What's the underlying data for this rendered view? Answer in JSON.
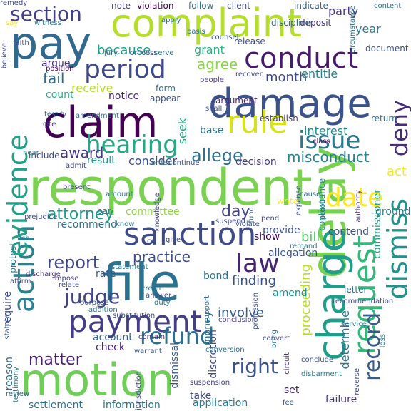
{
  "palette": {
    "background": "#ffffff",
    "purple": "#46337e",
    "dark_blue": "#365c8d",
    "blue": "#277f8e",
    "teal": "#1fa187",
    "green": "#4ac16d",
    "light_green": "#9fda3a",
    "yellow": "#fde725"
  },
  "words": [
    {
      "text": "respondent",
      "color": "#7ad151"
    },
    {
      "text": "delay",
      "color": "#7ad151"
    },
    {
      "text": "motion",
      "color": "#6ece58"
    },
    {
      "text": "file",
      "color": "#2c728e"
    },
    {
      "text": "complaint",
      "color": "#b5de2b"
    },
    {
      "text": "damage",
      "color": "#3b528b"
    },
    {
      "text": "claim",
      "color": "#440154"
    },
    {
      "text": "pay",
      "color": "#31688e"
    },
    {
      "text": "charge",
      "color": "#1f9e89"
    },
    {
      "text": "request",
      "color": "#35b779"
    },
    {
      "text": "sanction",
      "color": "#3e4a89"
    },
    {
      "text": "payment",
      "color": "#433e85"
    },
    {
      "text": "action",
      "color": "#26828e"
    },
    {
      "text": "conduct",
      "color": "#481a6c"
    },
    {
      "text": "rule",
      "color": "#d8e219"
    },
    {
      "text": "dismiss",
      "color": "#21918c"
    },
    {
      "text": "evidence",
      "color": "#1fa187"
    },
    {
      "text": "issue",
      "color": "#2a788e"
    },
    {
      "text": "period",
      "color": "#3e4989"
    },
    {
      "text": "hearing",
      "color": "#22a884"
    },
    {
      "text": "date",
      "color": "#fde725"
    },
    {
      "text": "law",
      "color": "#482475"
    },
    {
      "text": "refund",
      "color": "#2d708e"
    },
    {
      "text": "right",
      "color": "#3b528b"
    },
    {
      "text": "deny",
      "color": "#472c7a"
    },
    {
      "text": "judge",
      "color": "#414487"
    },
    {
      "text": "record",
      "color": "#365c8d"
    },
    {
      "text": "section",
      "color": "#424086"
    },
    {
      "text": "allege",
      "color": "#2e6e8e"
    },
    {
      "text": "report",
      "color": "#3f4788"
    },
    {
      "text": "matter",
      "color": "#482173"
    },
    {
      "text": "attorney",
      "color": "#1f988b"
    },
    {
      "text": "day",
      "color": "#404688"
    },
    {
      "text": "misconduct",
      "color": "#25848e"
    },
    {
      "text": "award",
      "color": "#453882"
    },
    {
      "text": "fail",
      "color": "#31688e"
    },
    {
      "text": "month",
      "color": "#3e4989"
    },
    {
      "text": "because",
      "color": "#1e9b8a"
    },
    {
      "text": "proceeding",
      "color": "#b8de29"
    },
    {
      "text": "bill",
      "color": "#56c667"
    },
    {
      "text": "practice",
      "color": "#3e4c8a"
    },
    {
      "text": "finding",
      "color": "#3b528b"
    },
    {
      "text": "involve",
      "color": "#365d8d"
    },
    {
      "text": "determine",
      "color": "#2c718e"
    },
    {
      "text": "agree",
      "color": "#8bd646"
    },
    {
      "text": "party",
      "color": "#443a83"
    },
    {
      "text": "year",
      "color": "#287d8e"
    },
    {
      "text": "grant",
      "color": "#2db27d"
    },
    {
      "text": "argue",
      "color": "#46327e"
    },
    {
      "text": "entitle",
      "color": "#26828e"
    },
    {
      "text": "consider",
      "color": "#3c4f8a"
    },
    {
      "text": "interest",
      "color": "#24878e"
    },
    {
      "text": "base",
      "color": "#2a788e"
    },
    {
      "text": "decision",
      "color": "#433d84"
    },
    {
      "text": "result",
      "color": "#1f9a8a"
    },
    {
      "text": "seek",
      "color": "#22a884"
    },
    {
      "text": "receive",
      "color": "#b5de2b"
    },
    {
      "text": "count",
      "color": "#26ad81"
    },
    {
      "text": "notice",
      "color": "#482878"
    },
    {
      "text": "committee",
      "color": "#90d743"
    },
    {
      "text": "money",
      "color": "#2d708e"
    },
    {
      "text": "provide",
      "color": "#3b528b"
    },
    {
      "text": "rate",
      "color": "#39568c"
    },
    {
      "text": "check",
      "color": "#482475"
    },
    {
      "text": "amend",
      "color": "#21918c"
    },
    {
      "text": "reason",
      "color": "#31688e"
    },
    {
      "text": "require",
      "color": "#3e4a89"
    },
    {
      "text": "protest",
      "color": "#277f8e"
    },
    {
      "text": "show",
      "color": "#440154"
    },
    {
      "text": "account",
      "color": "#33638d"
    },
    {
      "text": "set",
      "color": "#482878"
    },
    {
      "text": "take",
      "color": "#3e4989"
    },
    {
      "text": "application",
      "color": "#2a788e"
    },
    {
      "text": "information",
      "color": "#2a788e"
    },
    {
      "text": "settlement",
      "color": "#2e6e8e"
    },
    {
      "text": "failure",
      "color": "#46327e"
    },
    {
      "text": "commissioner",
      "color": "#1fa187"
    },
    {
      "text": "recommend",
      "color": "#2d708e"
    },
    {
      "text": "contend",
      "color": "#3b528b"
    },
    {
      "text": "bond",
      "color": "#2c728e"
    },
    {
      "text": "discretion",
      "color": "#3e4989"
    },
    {
      "text": "dismissal",
      "color": "#39568c"
    },
    {
      "text": "allegation",
      "color": "#3b528b"
    },
    {
      "text": "act",
      "color": "#fde725"
    },
    {
      "text": "ground",
      "color": "#2a788e"
    },
    {
      "text": "continuance",
      "color": "#21918c"
    },
    {
      "text": "par",
      "color": "#2c728e"
    },
    {
      "text": "include",
      "color": "#3e4989"
    },
    {
      "text": "appear",
      "color": "#3b528b"
    },
    {
      "text": "form",
      "color": "#2e6e8e"
    },
    {
      "text": "establish",
      "color": "#433e85"
    },
    {
      "text": "argument",
      "color": "#482475"
    },
    {
      "text": "note",
      "color": "#414487"
    },
    {
      "text": "violation",
      "color": "#440154"
    },
    {
      "text": "follow",
      "color": "#2a788e"
    },
    {
      "text": "client",
      "color": "#3e4a89"
    },
    {
      "text": "indicate",
      "color": "#33638d"
    },
    {
      "text": "deposit",
      "color": "#46327e"
    },
    {
      "text": "discipline",
      "color": "#2e6e8e"
    },
    {
      "text": "release",
      "color": "#3e4989"
    },
    {
      "text": "circumstance",
      "color": "#2c728e"
    },
    {
      "text": "counsel",
      "color": "#3b528b"
    },
    {
      "text": "basis",
      "color": "#2a788e"
    },
    {
      "text": "apply",
      "color": "#2e6e8e"
    },
    {
      "text": "jury",
      "color": "#31688e"
    },
    {
      "text": "process",
      "color": "#3e4989"
    },
    {
      "text": "serve",
      "color": "#2c728e"
    },
    {
      "text": "position",
      "color": "#440154"
    },
    {
      "text": "recover",
      "color": "#3e4989"
    },
    {
      "text": "people",
      "color": "#433e85"
    },
    {
      "text": "document",
      "color": "#3b528b"
    },
    {
      "text": "return",
      "color": "#2e6e8e"
    },
    {
      "text": "shall",
      "color": "#3e4a89"
    },
    {
      "text": "amendment",
      "color": "#2c728e"
    },
    {
      "text": "testify",
      "color": "#33638d"
    },
    {
      "text": "cite",
      "color": "#414487"
    },
    {
      "text": "hear",
      "color": "#2a788e"
    },
    {
      "text": "admit",
      "color": "#3e4989"
    },
    {
      "text": "order",
      "color": "#2e6e8e"
    },
    {
      "text": "continue",
      "color": "#3b528b"
    },
    {
      "text": "class",
      "color": "#440154"
    },
    {
      "text": "present",
      "color": "#3e4989"
    },
    {
      "text": "amount",
      "color": "#2c728e"
    },
    {
      "text": "cause",
      "color": "#31688e"
    },
    {
      "text": "knowledge",
      "color": "#433e85"
    },
    {
      "text": "expense",
      "color": "#3b528b"
    },
    {
      "text": "proof",
      "color": "#2a788e"
    },
    {
      "text": "authority",
      "color": "#46327e"
    },
    {
      "text": "know",
      "color": "#2e6e8e"
    },
    {
      "text": "suspend",
      "color": "#3e4989"
    },
    {
      "text": "fund",
      "color": "#33638d"
    },
    {
      "text": "write",
      "color": "#fde725"
    },
    {
      "text": "pend",
      "color": "#3e4989"
    },
    {
      "text": "remand",
      "color": "#2a788e"
    },
    {
      "text": "violate",
      "color": "#3b528b"
    },
    {
      "text": "statement",
      "color": "#2c728e"
    },
    {
      "text": "affirm",
      "color": "#3e4989"
    },
    {
      "text": "discharge",
      "color": "#46327e"
    },
    {
      "text": "impose",
      "color": "#433e85"
    },
    {
      "text": "relate",
      "color": "#3b528b"
    },
    {
      "text": "credit",
      "color": "#2c728e"
    },
    {
      "text": "answer",
      "color": "#3e4989"
    },
    {
      "text": "duty",
      "color": "#2a788e"
    },
    {
      "text": "support",
      "color": "#31688e"
    },
    {
      "text": "purpose",
      "color": "#3b528b"
    },
    {
      "text": "addition",
      "color": "#2e6e8e"
    },
    {
      "text": "substitution",
      "color": "#3e4989"
    },
    {
      "text": "conclusion",
      "color": "#433e85"
    },
    {
      "text": "profession",
      "color": "#3b528b"
    },
    {
      "text": "letter",
      "color": "#2c728e"
    },
    {
      "text": "recommendation",
      "color": "#3e4989"
    },
    {
      "text": "service",
      "color": "#2a788e"
    },
    {
      "text": "statute",
      "color": "#3b528b"
    },
    {
      "text": "contain",
      "color": "#46327e"
    },
    {
      "text": "convert",
      "color": "#3e4989"
    },
    {
      "text": "conversion",
      "color": "#2c728e"
    },
    {
      "text": "warrant",
      "color": "#3b528b"
    },
    {
      "text": "testimony",
      "color": "#2a788e"
    },
    {
      "text": "review",
      "color": "#31688e"
    },
    {
      "text": "jurisdiction",
      "color": "#3e4989"
    },
    {
      "text": "suspension",
      "color": "#433e85"
    },
    {
      "text": "conclude",
      "color": "#3b528b"
    },
    {
      "text": "loss",
      "color": "#2c728e"
    },
    {
      "text": "reverse",
      "color": "#3e4989"
    },
    {
      "text": "disbarment",
      "color": "#2a788e"
    },
    {
      "text": "fee",
      "color": "#3b528b"
    },
    {
      "text": "circuit",
      "color": "#46327e"
    },
    {
      "text": "bring",
      "color": "#2e6e8e"
    },
    {
      "text": "prejudice",
      "color": "#3e4989"
    },
    {
      "text": "ch",
      "color": "#2a788e"
    },
    {
      "text": "cd",
      "color": "#3b528b"
    },
    {
      "text": "give",
      "color": "#3e4989"
    },
    {
      "text": "say",
      "color": "#fde725"
    },
    {
      "text": "witness",
      "color": "#2a788e"
    },
    {
      "text": "faith",
      "color": "#3b528b"
    },
    {
      "text": "believe",
      "color": "#3e4989"
    },
    {
      "text": "content",
      "color": "#2c728e"
    },
    {
      "text": "remedy",
      "color": "#3e4989"
    }
  ]
}
